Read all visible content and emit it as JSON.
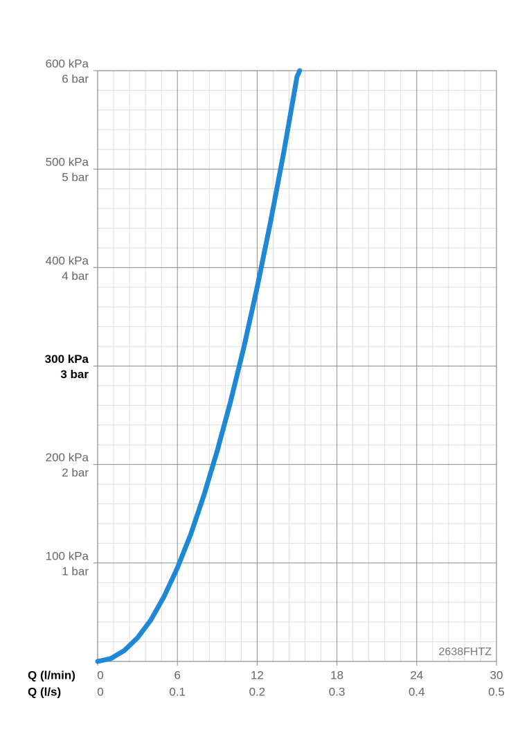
{
  "chart_data": {
    "type": "line",
    "x": [
      0,
      1,
      2,
      3,
      4,
      5,
      6,
      7,
      8,
      9,
      10,
      11,
      12,
      13,
      14,
      15,
      15.2
    ],
    "values": [
      0,
      3,
      11,
      24,
      42,
      66,
      95,
      129,
      169,
      214,
      264,
      319,
      380,
      446,
      517,
      594,
      600
    ],
    "color": "#1f88d4",
    "xlim": [
      0,
      30
    ],
    "xticks": [
      0,
      6,
      12,
      18,
      24,
      30
    ],
    "x_label": "Q (l/min)",
    "x2lim": [
      0,
      0.5
    ],
    "x2ticks": [
      0,
      0.1,
      0.2,
      0.3,
      0.4,
      0.5
    ],
    "x2_label": "Q (l/s)",
    "ylim": [
      0,
      600
    ],
    "yticks": [
      {
        "value": 100,
        "label": "100 kPa"
      },
      {
        "value": 200,
        "label": "200 kPa"
      },
      {
        "value": 300,
        "label": "300 kPa"
      },
      {
        "value": 400,
        "label": "400 kPa"
      },
      {
        "value": 500,
        "label": "500 kPa"
      },
      {
        "value": 600,
        "label": "600 kPa"
      }
    ],
    "y2lim": [
      0,
      6
    ],
    "y2ticks": [
      {
        "value": 1,
        "label": "1 bar"
      },
      {
        "value": 2,
        "label": "2 bar"
      },
      {
        "value": 3,
        "label": "3 bar"
      },
      {
        "value": 4,
        "label": "4 bar"
      },
      {
        "value": 5,
        "label": "5 bar"
      },
      {
        "value": 6,
        "label": "6 bar"
      }
    ],
    "emphasized_ytick": 300,
    "grid": true,
    "minor_grid_divisions": 5,
    "annotation": "2638FHTZ"
  }
}
